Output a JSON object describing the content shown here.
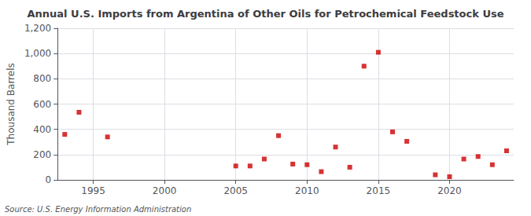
{
  "chart_data": {
    "type": "scatter",
    "title": "Annual U.S. Imports from Argentina of Other Oils for Petrochemical Feedstock Use",
    "ylabel": "Thousand Barrels",
    "annotations": [
      "Source: U.S. Energy Information Administration"
    ],
    "x": [
      1993,
      1994,
      1996,
      2005,
      2006,
      2007,
      2008,
      2009,
      2010,
      2011,
      2012,
      2013,
      2014,
      2015,
      2016,
      2017,
      2019,
      2020,
      2021,
      2022,
      2023,
      2024
    ],
    "values": [
      360,
      535,
      340,
      110,
      110,
      165,
      350,
      125,
      120,
      65,
      260,
      100,
      900,
      1010,
      380,
      305,
      40,
      25,
      165,
      185,
      120,
      230
    ],
    "color": "#cc0000",
    "marker": "square",
    "xlim": [
      1992.5,
      2024.5
    ],
    "xticks": [
      1995,
      2000,
      2005,
      2010,
      2015,
      2020
    ],
    "ylim": [
      0,
      1200
    ],
    "yticks": [
      0,
      200,
      400,
      600,
      800,
      {
        "value": 1000,
        "label": "1,000"
      },
      {
        "value": 1200,
        "label": "1,200"
      }
    ],
    "grid": true
  }
}
